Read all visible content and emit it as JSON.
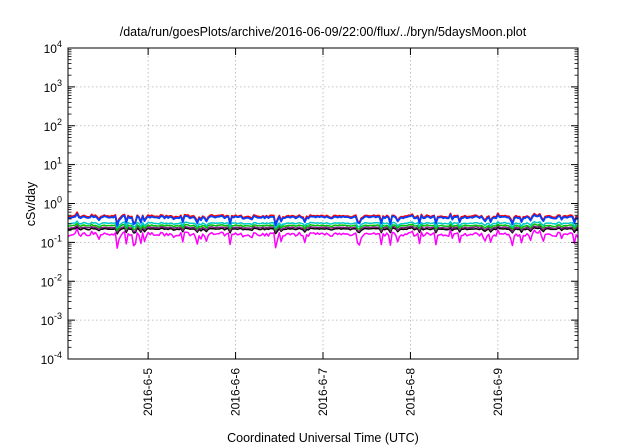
{
  "chart_data": {
    "type": "line",
    "title": "/data/run/goesPlots/archive/2016-06-09/22:00/flux/../bryn/5daysMoon.plot",
    "xlabel": "Coordinated Universal Time (UTC)",
    "ylabel": "cSv/day",
    "yscale": "log",
    "ylim": [
      0.0001,
      10000
    ],
    "y_ticks": [
      {
        "value": 0.0001,
        "base": "10",
        "exp": "-4"
      },
      {
        "value": 0.001,
        "base": "10",
        "exp": "-3"
      },
      {
        "value": 0.01,
        "base": "10",
        "exp": "-2"
      },
      {
        "value": 0.1,
        "base": "10",
        "exp": "-1"
      },
      {
        "value": 1,
        "base": "10",
        "exp": "0"
      },
      {
        "value": 10,
        "base": "10",
        "exp": "1"
      },
      {
        "value": 100,
        "base": "10",
        "exp": "2"
      },
      {
        "value": 1000,
        "base": "10",
        "exp": "3"
      },
      {
        "value": 10000,
        "base": "10",
        "exp": "4"
      }
    ],
    "xlim": [
      "2016-06-04 02:00",
      "2016-06-09 22:00"
    ],
    "x_ticks": [
      "2016-6-5",
      "2016-6-6",
      "2016-6-7",
      "2016-6-8",
      "2016-6-9"
    ],
    "grid": true,
    "legend": "none",
    "series": [
      {
        "color": "#ff00ff",
        "level": 0.16,
        "x": [
          "2016-06-04 02:00",
          "2016-06-09 22:00"
        ],
        "y": [
          0.16,
          0.16
        ]
      },
      {
        "color": "#000000",
        "level": 0.22,
        "x": [
          "2016-06-04 02:00",
          "2016-06-09 22:00"
        ],
        "y": [
          0.22,
          0.22
        ]
      },
      {
        "color": "#7f1f7f",
        "level": 0.24,
        "x": [
          "2016-06-04 02:00",
          "2016-06-09 22:00"
        ],
        "y": [
          0.24,
          0.24
        ]
      },
      {
        "color": "#00c000",
        "level": 0.27,
        "x": [
          "2016-06-04 02:00",
          "2016-06-09 22:00"
        ],
        "y": [
          0.27,
          0.27
        ]
      },
      {
        "color": "#00c8c8",
        "level": 0.31,
        "x": [
          "2016-06-04 02:00",
          "2016-06-09 22:00"
        ],
        "y": [
          0.31,
          0.31
        ]
      },
      {
        "color": "#ff0000",
        "level": 0.47,
        "x": [
          "2016-06-04 02:00",
          "2016-06-09 22:00"
        ],
        "y": [
          0.47,
          0.47
        ]
      },
      {
        "color": "#0040ff",
        "level": 0.44,
        "x": [
          "2016-06-04 02:00",
          "2016-06-09 22:00"
        ],
        "y": [
          0.44,
          0.44
        ]
      }
    ]
  }
}
